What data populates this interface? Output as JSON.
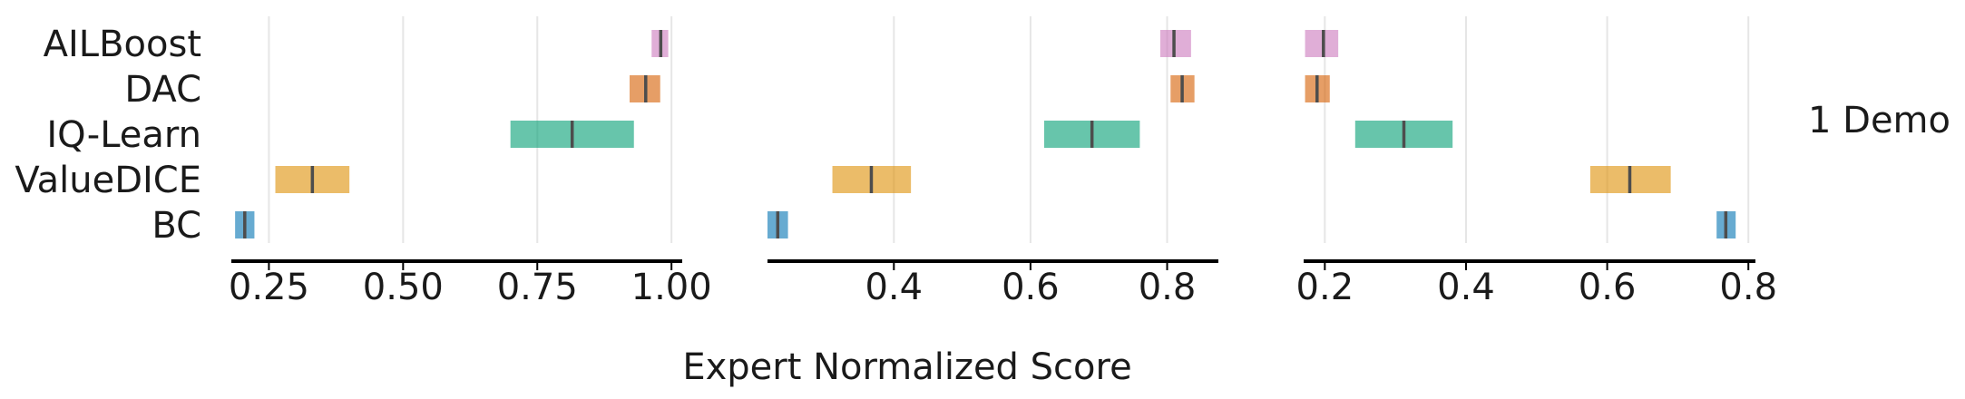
{
  "chart_data": {
    "type": "interval",
    "xlabel": "Expert Normalized Score",
    "row_label": "1 Demo",
    "methods": [
      "AILBoost",
      "DAC",
      "IQ-Learn",
      "ValueDICE",
      "BC"
    ],
    "colors": {
      "AILBoost": "#cc78bc",
      "DAC": "#d55e00",
      "IQ-Learn": "#029e73",
      "ValueDICE": "#de8f05",
      "BC": "#0173b2"
    },
    "median_line_color": "#4d4d4d",
    "panels": [
      {
        "xlim": [
          0.18,
          1.02
        ],
        "ticks": [
          0.25,
          0.5,
          0.75,
          1.0
        ],
        "tick_labels": [
          "0.25",
          "0.50",
          "0.75",
          "1.00"
        ],
        "intervals": [
          {
            "method": "AILBoost",
            "low": 0.963,
            "high": 0.994,
            "point": 0.98
          },
          {
            "method": "DAC",
            "low": 0.922,
            "high": 0.979,
            "point": 0.952
          },
          {
            "method": "IQ-Learn",
            "low": 0.7,
            "high": 0.93,
            "point": 0.815
          },
          {
            "method": "ValueDICE",
            "low": 0.262,
            "high": 0.4,
            "point": 0.331
          },
          {
            "method": "BC",
            "low": 0.187,
            "high": 0.223,
            "point": 0.205
          }
        ]
      },
      {
        "xlim": [
          0.215,
          0.875
        ],
        "ticks": [
          0.4,
          0.6,
          0.8
        ],
        "tick_labels": [
          "0.4",
          "0.6",
          "0.8"
        ],
        "intervals": [
          {
            "method": "AILBoost",
            "low": 0.79,
            "high": 0.835,
            "point": 0.81
          },
          {
            "method": "DAC",
            "low": 0.805,
            "high": 0.84,
            "point": 0.822
          },
          {
            "method": "IQ-Learn",
            "low": 0.62,
            "high": 0.76,
            "point": 0.69
          },
          {
            "method": "ValueDICE",
            "low": 0.31,
            "high": 0.425,
            "point": 0.367
          },
          {
            "method": "BC",
            "low": 0.215,
            "high": 0.245,
            "point": 0.23
          }
        ]
      },
      {
        "xlim": [
          0.17,
          0.81
        ],
        "ticks": [
          0.2,
          0.4,
          0.6,
          0.8
        ],
        "tick_labels": [
          "0.2",
          "0.4",
          "0.6",
          "0.8"
        ],
        "intervals": [
          {
            "method": "AILBoost",
            "low": 0.172,
            "high": 0.219,
            "point": 0.198
          },
          {
            "method": "DAC",
            "low": 0.172,
            "high": 0.207,
            "point": 0.189
          },
          {
            "method": "IQ-Learn",
            "low": 0.243,
            "high": 0.381,
            "point": 0.312
          },
          {
            "method": "ValueDICE",
            "low": 0.576,
            "high": 0.69,
            "point": 0.632
          },
          {
            "method": "BC",
            "low": 0.755,
            "high": 0.782,
            "point": 0.768
          }
        ]
      }
    ]
  }
}
